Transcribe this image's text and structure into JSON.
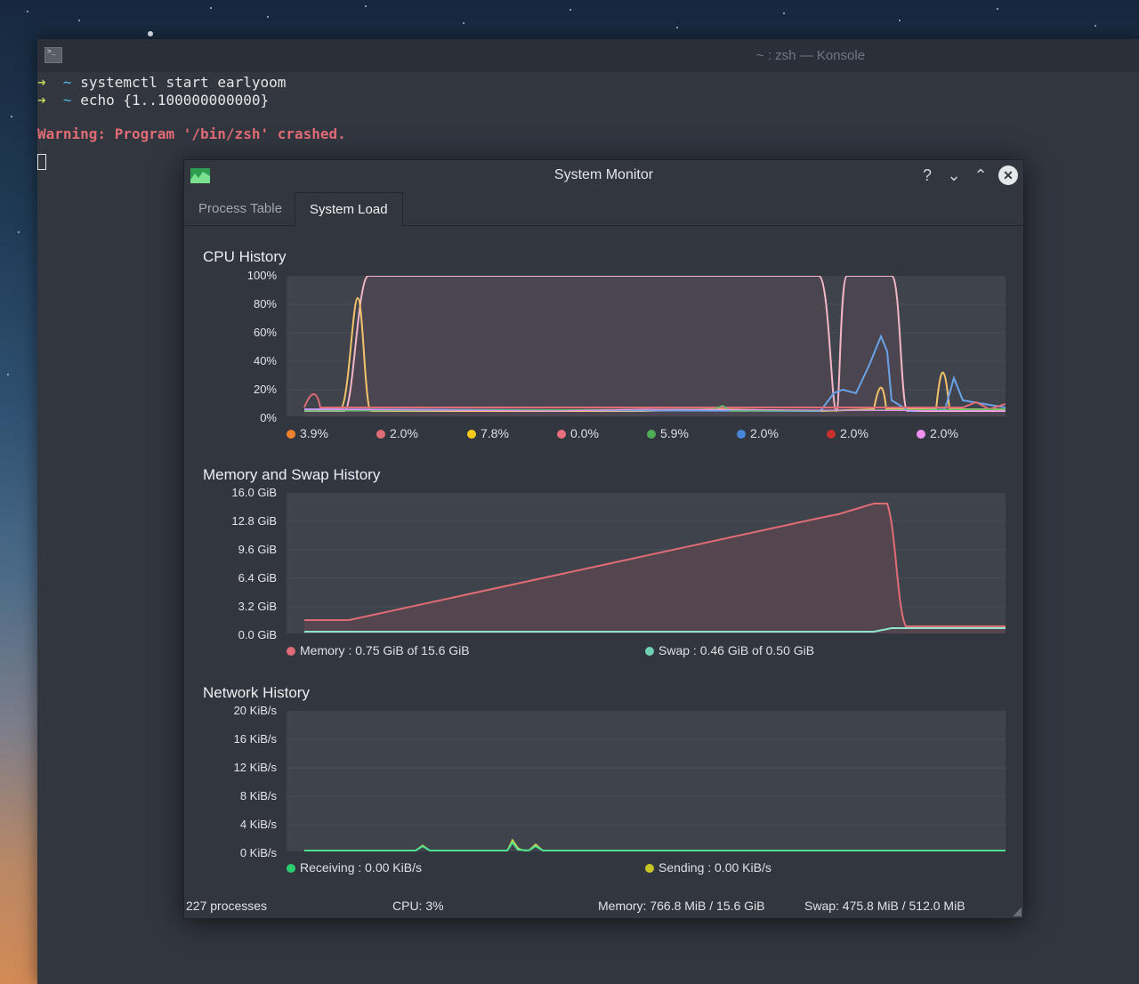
{
  "konsole": {
    "title": "~ : zsh — Konsole",
    "lines": [
      {
        "arrow": "➜",
        "tilde": "~",
        "command": "systemctl start earlyoom"
      },
      {
        "arrow": "➜",
        "tilde": "~",
        "command": "echo {1..100000000000}"
      }
    ],
    "warning": "Warning: Program '/bin/zsh' crashed."
  },
  "sysmon": {
    "title": "System Monitor",
    "buttons": {
      "help": "?",
      "minimize": "⌄",
      "maximize": "⌃",
      "close": "✕"
    },
    "tabs": [
      {
        "label": "Process Table",
        "active": false
      },
      {
        "label": "System Load",
        "active": true
      }
    ],
    "cpu": {
      "title": "CPU History",
      "yticks": [
        "100%",
        "80%",
        "60%",
        "40%",
        "20%",
        "0%"
      ],
      "legend": [
        {
          "value": "3.9%",
          "color": "#f0822e"
        },
        {
          "value": "2.0%",
          "color": "#e06c75"
        },
        {
          "value": "7.8%",
          "color": "#f5c81c"
        },
        {
          "value": "0.0%",
          "color": "#e8707c"
        },
        {
          "value": "5.9%",
          "color": "#4cae55"
        },
        {
          "value": "2.0%",
          "color": "#4a86d8"
        },
        {
          "value": "2.0%",
          "color": "#c83030"
        },
        {
          "value": "2.0%",
          "color": "#f090f0"
        }
      ]
    },
    "memory": {
      "title": "Memory and Swap History",
      "yticks": [
        "16.0 GiB",
        "12.8 GiB",
        "9.6 GiB",
        "6.4 GiB",
        "3.2 GiB",
        "0.0 GiB"
      ],
      "legend": [
        {
          "label": "Memory : 0.75 GiB of 15.6 GiB",
          "color": "#e06c75"
        },
        {
          "label": "Swap : 0.46 GiB of 0.50 GiB",
          "color": "#6fd0b4"
        }
      ]
    },
    "network": {
      "title": "Network History",
      "yticks": [
        "20 KiB/s",
        "16 KiB/s",
        "12 KiB/s",
        "8 KiB/s",
        "4 KiB/s",
        "0 KiB/s"
      ],
      "legend": [
        {
          "label": "Receiving : 0.00 KiB/s",
          "color": "#2ecc71"
        },
        {
          "label": "Sending : 0.00 KiB/s",
          "color": "#c8c428"
        }
      ]
    },
    "status": {
      "processes": "227 processes",
      "cpu": "CPU: 3%",
      "memory": "Memory: 766.8 MiB / 15.6 GiB",
      "swap": "Swap: 475.8 MiB / 512.0 MiB"
    }
  }
}
